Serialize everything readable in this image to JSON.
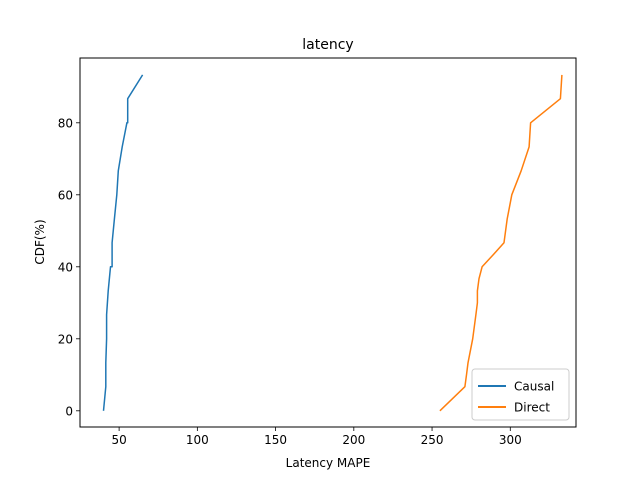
{
  "chart_data": {
    "type": "line",
    "title": "latency",
    "xlabel": "Latency MAPE",
    "ylabel": "CDF(%)",
    "xlim": [
      25,
      342
    ],
    "ylim": [
      -4.5,
      98
    ],
    "xticks": [
      50,
      100,
      150,
      200,
      250,
      300
    ],
    "yticks": [
      0,
      20,
      40,
      60,
      80
    ],
    "grid": false,
    "legend_position": "lower-right",
    "series": [
      {
        "name": "Causal",
        "color": "#1f77b4",
        "x": [
          40,
          41.5,
          41.5,
          42,
          42,
          42,
          42,
          43,
          44.5,
          45.5,
          45.5,
          47,
          48.5,
          49.5,
          52,
          55,
          55.5,
          55.5,
          65
        ],
        "y": [
          0,
          6.7,
          13.3,
          20,
          26.7,
          26.7,
          26.7,
          33.3,
          40,
          40,
          46.7,
          53.3,
          60,
          66.7,
          73.3,
          80,
          80,
          86.7,
          93.3
        ]
      },
      {
        "name": "Direct",
        "color": "#ff7f0e",
        "x": [
          255,
          271,
          272,
          273,
          276,
          278,
          279,
          279,
          280,
          282,
          289,
          296,
          298,
          301,
          307,
          312,
          313,
          332,
          333
        ],
        "y": [
          0,
          6.7,
          10,
          13.3,
          20,
          26.7,
          30,
          33.3,
          36.7,
          40,
          43.3,
          46.7,
          53.3,
          60,
          66.7,
          73.3,
          80,
          86.7,
          93.3
        ]
      }
    ]
  }
}
